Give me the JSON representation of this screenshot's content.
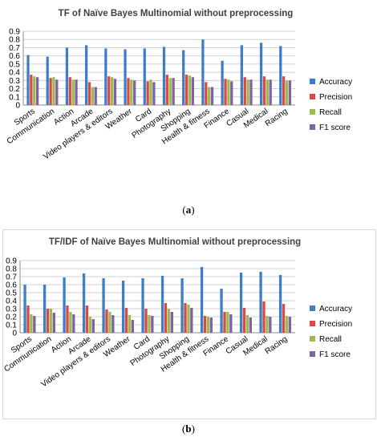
{
  "colors": {
    "accuracy": "#3d7fc7",
    "precision": "#d94a45",
    "recall": "#9bbb4f",
    "f1": "#7f62a2"
  },
  "figure": {
    "caption_a_open": "(",
    "caption_a_letter": "a",
    "caption_a_close": ")",
    "caption_b_open": "(",
    "caption_b_letter": "b",
    "caption_b_close": ")"
  },
  "chart_data": [
    {
      "type": "bar",
      "title": "TF of Naïve Bayes Multinomial without  preprocessing",
      "xlabel": "",
      "ylabel": "",
      "ylim": [
        0,
        0.9
      ],
      "yticks": [
        "0",
        "0.1",
        "0.2",
        "0.3",
        "0.4",
        "0.5",
        "0.6",
        "0.7",
        "0.8",
        "0.9"
      ],
      "grid": true,
      "legend_position": "right",
      "categories": [
        "Sports",
        "Communication",
        "Action",
        "Arcade",
        "Video players & editors",
        "Weather",
        "Card",
        "Photography",
        "Shopping",
        "Health & fitness",
        "Finance",
        "Casual",
        "Medical",
        "Racing"
      ],
      "series": [
        {
          "name": "Accuracy",
          "values": [
            0.61,
            0.59,
            0.7,
            0.73,
            0.69,
            0.68,
            0.69,
            0.71,
            0.67,
            0.8,
            0.54,
            0.73,
            0.76,
            0.72
          ]
        },
        {
          "name": "Precision",
          "values": [
            0.37,
            0.33,
            0.34,
            0.28,
            0.35,
            0.33,
            0.29,
            0.37,
            0.37,
            0.28,
            0.32,
            0.34,
            0.35,
            0.35
          ]
        },
        {
          "name": "Recall",
          "values": [
            0.35,
            0.34,
            0.31,
            0.22,
            0.34,
            0.31,
            0.31,
            0.33,
            0.36,
            0.22,
            0.31,
            0.31,
            0.31,
            0.3
          ]
        },
        {
          "name": "F1 score",
          "values": [
            0.34,
            0.31,
            0.31,
            0.22,
            0.32,
            0.3,
            0.28,
            0.33,
            0.34,
            0.22,
            0.29,
            0.31,
            0.31,
            0.3
          ]
        }
      ]
    },
    {
      "type": "bar",
      "title": "TF/IDF of Naïve Bayes Multinomial without  preprocessing",
      "xlabel": "",
      "ylabel": "",
      "ylim": [
        0,
        0.9
      ],
      "yticks": [
        "0",
        "0.1",
        "0.2",
        "0.3",
        "0.4",
        "0.5",
        "0.6",
        "0.7",
        "0.8",
        "0.9"
      ],
      "grid": true,
      "legend_position": "right",
      "categories": [
        "Sports",
        "Communication",
        "Action",
        "Arcade",
        "Video players & editors",
        "Weather",
        "Card",
        "Photography",
        "Shopping",
        "Health & fitness",
        "Finance",
        "Casual",
        "Medical",
        "Racing"
      ],
      "series": [
        {
          "name": "Accuracy",
          "values": [
            0.6,
            0.6,
            0.69,
            0.74,
            0.68,
            0.65,
            0.68,
            0.71,
            0.68,
            0.82,
            0.55,
            0.75,
            0.76,
            0.72
          ]
        },
        {
          "name": "Precision",
          "values": [
            0.34,
            0.3,
            0.34,
            0.34,
            0.29,
            0.31,
            0.3,
            0.37,
            0.37,
            0.21,
            0.26,
            0.31,
            0.39,
            0.36
          ]
        },
        {
          "name": "Recall",
          "values": [
            0.23,
            0.3,
            0.26,
            0.2,
            0.26,
            0.22,
            0.22,
            0.3,
            0.35,
            0.2,
            0.26,
            0.22,
            0.21,
            0.21
          ]
        },
        {
          "name": "F1 score",
          "values": [
            0.21,
            0.25,
            0.23,
            0.17,
            0.22,
            0.16,
            0.21,
            0.26,
            0.31,
            0.19,
            0.23,
            0.19,
            0.2,
            0.2
          ]
        }
      ]
    }
  ]
}
